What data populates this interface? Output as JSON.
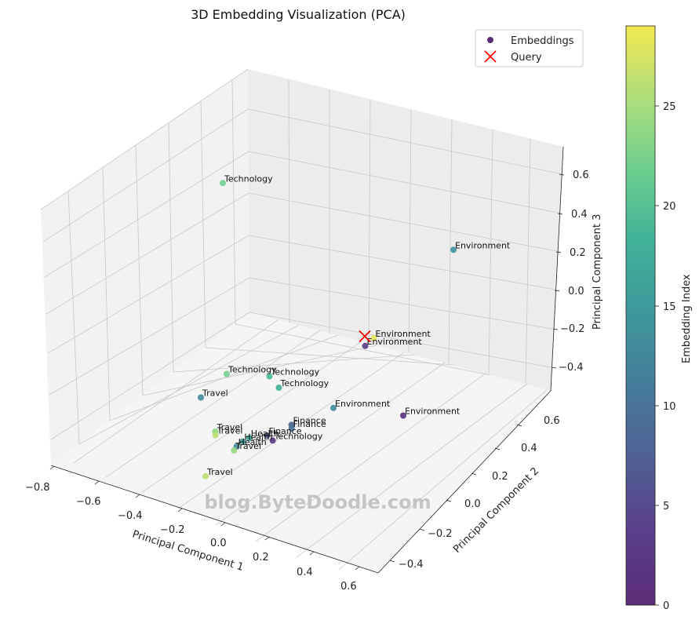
{
  "chart_data": {
    "type": "scatter",
    "title": "3D Embedding Visualization (PCA)",
    "xlabel": "Principal Component 1",
    "ylabel": "Principal Component 2",
    "zlabel": "Principal Component 3",
    "x_ticks": [
      "−0.8",
      "−0.6",
      "−0.4",
      "−0.2",
      "0.0",
      "0.2",
      "0.4",
      "0.6"
    ],
    "y_ticks": [
      "−0.4",
      "−0.2",
      "0.0",
      "0.2",
      "0.4",
      "0.6"
    ],
    "z_ticks": [
      "−0.4",
      "−0.2",
      "0.0",
      "0.2",
      "0.4",
      "0.6"
    ],
    "legend": [
      {
        "label": "Embeddings",
        "marker": "circle",
        "color": "#5b2d78"
      },
      {
        "label": "Query",
        "marker": "x",
        "color": "#ff0000"
      }
    ],
    "colorbar": {
      "label": "Embedding Index",
      "min": 0,
      "max": 29,
      "ticks": [
        "0",
        "5",
        "10",
        "15",
        "20",
        "25"
      ]
    },
    "points": [
      {
        "label": "Technology",
        "x": -0.8,
        "y": 0.55,
        "z": 0.55,
        "index": 22
      },
      {
        "label": "Environment",
        "x": 0.55,
        "y": 0.45,
        "z": 0.5,
        "index": 14
      },
      {
        "label": "Environment",
        "x": 0.2,
        "y": 0.3,
        "z": 0.05,
        "index": 28
      },
      {
        "label": "Environment",
        "x": 0.15,
        "y": 0.3,
        "z": 0.0,
        "index": 3
      },
      {
        "label": "Environment",
        "x": 0.5,
        "y": 0.1,
        "z": -0.2,
        "index": 1
      },
      {
        "label": "Environment",
        "x": 0.15,
        "y": 0.05,
        "z": -0.2,
        "index": 13
      },
      {
        "label": "Technology",
        "x": -0.4,
        "y": 0.0,
        "z": -0.1,
        "index": 22
      },
      {
        "label": "Technology",
        "x": -0.2,
        "y": 0.05,
        "z": -0.1,
        "index": 19
      },
      {
        "label": "Technology",
        "x": -0.15,
        "y": 0.05,
        "z": -0.15,
        "index": 18
      },
      {
        "label": "Travel",
        "x": -0.55,
        "y": 0.0,
        "z": -0.25,
        "index": 12
      },
      {
        "label": "Finance",
        "x": -0.05,
        "y": 0.0,
        "z": -0.3,
        "index": 8
      },
      {
        "label": "Finance",
        "x": -0.05,
        "y": 0.0,
        "z": -0.32,
        "index": 10
      },
      {
        "label": "Travel",
        "x": -0.4,
        "y": -0.1,
        "z": -0.35,
        "index": 24
      },
      {
        "label": "Travel",
        "x": -0.4,
        "y": -0.1,
        "z": -0.37,
        "index": 26
      },
      {
        "label": "Finance",
        "x": -0.15,
        "y": -0.05,
        "z": -0.35,
        "index": 7
      },
      {
        "label": "Technology",
        "x": -0.12,
        "y": -0.05,
        "z": -0.37,
        "index": 2
      },
      {
        "label": "Health",
        "x": -0.25,
        "y": -0.05,
        "z": -0.38,
        "index": 17
      },
      {
        "label": "Health",
        "x": -0.28,
        "y": -0.06,
        "z": -0.4,
        "index": 15
      },
      {
        "label": "Health",
        "x": -0.3,
        "y": -0.08,
        "z": -0.42,
        "index": 13
      },
      {
        "label": "Travel",
        "x": -0.3,
        "y": -0.1,
        "z": -0.43,
        "index": 24
      },
      {
        "label": "Travel",
        "x": -0.35,
        "y": -0.25,
        "z": -0.5,
        "index": 26
      }
    ],
    "query": {
      "label": "Query",
      "x": 0.15,
      "y": 0.3,
      "z": 0.05
    }
  },
  "watermark": "blog.ByteDoodle.com"
}
